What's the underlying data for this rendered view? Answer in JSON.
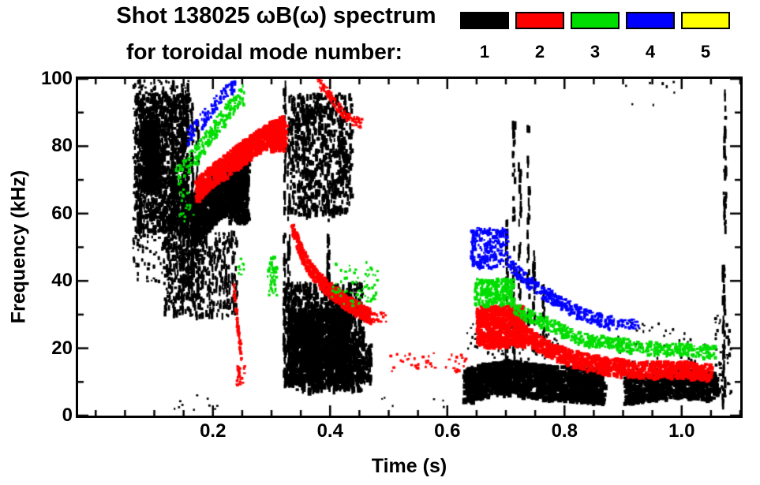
{
  "header": {
    "title_line1": "Shot 138025 ωB(ω) spectrum",
    "title_line2": "for toroidal mode number:"
  },
  "legend": {
    "items": [
      {
        "mode": 1,
        "label": "1",
        "color": "#000000"
      },
      {
        "mode": 2,
        "label": "2",
        "color": "#ff0000"
      },
      {
        "mode": 3,
        "label": "3",
        "color": "#00dd00"
      },
      {
        "mode": 4,
        "label": "4",
        "color": "#0000ff"
      },
      {
        "mode": 5,
        "label": "5",
        "color": "#ffff00"
      }
    ]
  },
  "chart_data": {
    "type": "scatter",
    "subtype": "spectrogram",
    "title": "Shot 138025 ωB(ω) spectrum for toroidal mode number: 1-5",
    "xlabel": "Time (s)",
    "ylabel": "Frequency (kHz)",
    "xlim": [
      -0.03,
      1.1
    ],
    "ylim": [
      0,
      100
    ],
    "x_ticks": {
      "major": [
        0.2,
        0.4,
        0.6,
        0.8,
        1.0
      ],
      "labels": [
        "0.2",
        "0.4",
        "0.6",
        "0.8",
        "1.0"
      ],
      "minor_step": 0.05
    },
    "y_ticks": {
      "major": [
        0,
        20,
        40,
        60,
        80,
        100
      ],
      "labels": [
        "0",
        "20",
        "40",
        "60",
        "80",
        "100"
      ],
      "minor_step": 10
    },
    "grid": false,
    "legend_position": "top-right",
    "axis_color": "#000000",
    "background": "#ffffff",
    "features": [
      {
        "mode": 1,
        "kind": "scatter",
        "t": [
          0.065,
          0.155
        ],
        "f": [
          55,
          96
        ],
        "n": 900,
        "dot": [
          2,
          5,
          3,
          8
        ]
      },
      {
        "mode": 1,
        "kind": "scatter",
        "t": [
          0.062,
          0.162
        ],
        "f": [
          40,
          100
        ],
        "n": 450,
        "dot": [
          2,
          4,
          2,
          6
        ]
      },
      {
        "mode": 1,
        "kind": "scatter",
        "t": [
          0.075,
          0.105
        ],
        "f": [
          68,
          88
        ],
        "n": 350,
        "dot": [
          3,
          6,
          4,
          9
        ]
      },
      {
        "mode": 1,
        "kind": "scatter",
        "t": [
          0.115,
          0.185
        ],
        "f": [
          30,
          68
        ],
        "n": 500,
        "dot": [
          2,
          4,
          3,
          8
        ]
      },
      {
        "mode": 1,
        "kind": "band",
        "points": [
          [
            0.16,
            58
          ],
          [
            0.19,
            63
          ],
          [
            0.22,
            68
          ],
          [
            0.255,
            74
          ]
        ],
        "width_khz": 15,
        "n": 1100,
        "dot": [
          3,
          6,
          3,
          7
        ]
      },
      {
        "mode": 1,
        "kind": "scatter",
        "t": [
          0.185,
          0.24
        ],
        "f": [
          30,
          55
        ],
        "n": 220,
        "dot": [
          2,
          3,
          3,
          9
        ]
      },
      {
        "mode": 1,
        "kind": "scatter",
        "t": [
          0.225,
          0.258
        ],
        "f": [
          58,
          77
        ],
        "n": 300,
        "dot": [
          3,
          6,
          4,
          8
        ]
      },
      {
        "mode": 1,
        "kind": "spike",
        "t": 0.147,
        "f": [
          32,
          100
        ],
        "n": 55
      },
      {
        "mode": 1,
        "kind": "spike",
        "t": 0.155,
        "f": [
          38,
          100
        ],
        "n": 50
      },
      {
        "mode": 1,
        "kind": "spike",
        "t": 0.163,
        "f": [
          30,
          95
        ],
        "n": 45
      },
      {
        "mode": 1,
        "kind": "spike",
        "t": 0.172,
        "f": [
          35,
          88
        ],
        "n": 40
      },
      {
        "mode": 1,
        "kind": "spike",
        "t": 0.1,
        "f": [
          60,
          100
        ],
        "n": 35
      },
      {
        "mode": 1,
        "kind": "spike",
        "t": 0.13,
        "f": [
          55,
          100
        ],
        "n": 35
      },
      {
        "mode": 1,
        "kind": "scatter",
        "t": [
          0.12,
          0.24
        ],
        "f": [
          2,
          8
        ],
        "n": 10,
        "dot": [
          2,
          3,
          2,
          3
        ]
      },
      {
        "mode": 1,
        "kind": "scatter",
        "t": [
          0.318,
          0.455
        ],
        "f": [
          8,
          40
        ],
        "n": 900,
        "dot": [
          2,
          5,
          3,
          9
        ]
      },
      {
        "mode": 1,
        "kind": "scatter",
        "t": [
          0.33,
          0.43
        ],
        "f": [
          10,
          32
        ],
        "n": 900,
        "dot": [
          3,
          7,
          4,
          10
        ]
      },
      {
        "mode": 1,
        "kind": "scatter",
        "t": [
          0.33,
          0.435
        ],
        "f": [
          60,
          96
        ],
        "n": 650,
        "dot": [
          2,
          5,
          3,
          9
        ]
      },
      {
        "mode": 1,
        "kind": "spike",
        "t": 0.321,
        "f": [
          12,
          100
        ],
        "n": 60
      },
      {
        "mode": 1,
        "kind": "spike",
        "t": 0.328,
        "f": [
          15,
          97
        ],
        "n": 50
      },
      {
        "mode": 1,
        "kind": "spike",
        "t": 0.395,
        "f": [
          40,
          75
        ],
        "n": 35
      },
      {
        "mode": 1,
        "kind": "scatter",
        "t": [
          0.43,
          0.468
        ],
        "f": [
          10,
          22
        ],
        "n": 170,
        "dot": [
          2,
          5,
          3,
          7
        ]
      },
      {
        "mode": 1,
        "kind": "band",
        "points": [
          [
            0.625,
            9
          ],
          [
            0.66,
            11
          ],
          [
            0.7,
            12
          ],
          [
            0.74,
            11
          ],
          [
            0.78,
            10
          ],
          [
            0.82,
            10
          ],
          [
            0.865,
            9
          ]
        ],
        "width_khz": 10,
        "n": 1300,
        "dot": [
          3,
          7,
          3,
          8
        ]
      },
      {
        "mode": 1,
        "kind": "band",
        "points": [
          [
            0.9,
            8
          ],
          [
            0.95,
            9
          ],
          [
            1.0,
            10
          ],
          [
            1.058,
            9
          ]
        ],
        "width_khz": 8,
        "n": 700,
        "dot": [
          3,
          7,
          3,
          7
        ]
      },
      {
        "mode": 1,
        "kind": "scatter",
        "t": [
          0.63,
          0.79
        ],
        "f": [
          17,
          28
        ],
        "n": 110,
        "dot": [
          2,
          3,
          2,
          4
        ]
      },
      {
        "mode": 1,
        "kind": "spike",
        "t": 0.7,
        "f": [
          15,
          62
        ],
        "n": 32
      },
      {
        "mode": 1,
        "kind": "spike",
        "t": 0.712,
        "f": [
          18,
          88
        ],
        "n": 40
      },
      {
        "mode": 1,
        "kind": "spike",
        "t": 0.722,
        "f": [
          20,
          78
        ],
        "n": 30
      },
      {
        "mode": 1,
        "kind": "spike",
        "t": 0.737,
        "f": [
          25,
          87
        ],
        "n": 36
      },
      {
        "mode": 1,
        "kind": "spike",
        "t": 0.746,
        "f": [
          18,
          50
        ],
        "n": 22
      },
      {
        "mode": 1,
        "kind": "spike",
        "t": 0.762,
        "f": [
          22,
          42
        ],
        "n": 16
      },
      {
        "mode": 1,
        "kind": "scatter",
        "t": [
          0.87,
          1.04
        ],
        "f": [
          14,
          28
        ],
        "n": 45,
        "dot": [
          2,
          3,
          2,
          4
        ]
      },
      {
        "mode": 1,
        "kind": "spike",
        "t": 1.07,
        "f": [
          3,
          45
        ],
        "n": 40
      },
      {
        "mode": 1,
        "kind": "spike",
        "t": 1.072,
        "f": [
          55,
          97
        ],
        "n": 35
      },
      {
        "mode": 1,
        "kind": "scatter",
        "t": [
          1.055,
          1.082
        ],
        "f": [
          5,
          30
        ],
        "n": 60,
        "dot": [
          2,
          4,
          2,
          5
        ]
      },
      {
        "mode": 1,
        "kind": "scatter",
        "t": [
          0.9,
          1.0
        ],
        "f": [
          92,
          100
        ],
        "n": 8,
        "dot": [
          2,
          3,
          2,
          4
        ]
      },
      {
        "mode": 1,
        "kind": "scatter",
        "t": [
          0.48,
          0.6
        ],
        "f": [
          2,
          6
        ],
        "n": 6,
        "dot": [
          2,
          3,
          2,
          3
        ]
      },
      {
        "mode": 2,
        "kind": "band",
        "points": [
          [
            0.168,
            67
          ],
          [
            0.2,
            72
          ],
          [
            0.23,
            76
          ],
          [
            0.26,
            80
          ],
          [
            0.295,
            84
          ],
          [
            0.318,
            86
          ]
        ],
        "width_khz": 7,
        "n": 850,
        "dot": [
          3,
          6,
          3,
          6
        ]
      },
      {
        "mode": 2,
        "kind": "scatter",
        "t": [
          0.295,
          0.322
        ],
        "f": [
          79,
          88
        ],
        "n": 180,
        "dot": [
          3,
          6,
          3,
          6
        ]
      },
      {
        "mode": 2,
        "kind": "band",
        "points": [
          [
            0.234,
            38
          ],
          [
            0.24,
            27
          ],
          [
            0.247,
            18
          ]
        ],
        "width_khz": 4,
        "n": 70,
        "dot": [
          2,
          4,
          2,
          5
        ]
      },
      {
        "mode": 2,
        "kind": "scatter",
        "t": [
          0.238,
          0.252
        ],
        "f": [
          9,
          15
        ],
        "n": 25,
        "dot": [
          2,
          4,
          2,
          4
        ]
      },
      {
        "mode": 2,
        "kind": "band",
        "points": [
          [
            0.375,
            100
          ],
          [
            0.395,
            96
          ],
          [
            0.415,
            91
          ],
          [
            0.435,
            88
          ],
          [
            0.452,
            87
          ]
        ],
        "width_khz": 3,
        "n": 130,
        "dot": [
          2,
          4,
          2,
          4
        ]
      },
      {
        "mode": 2,
        "kind": "band",
        "points": [
          [
            0.332,
            57
          ],
          [
            0.35,
            48
          ],
          [
            0.372,
            42
          ],
          [
            0.395,
            38
          ],
          [
            0.425,
            34
          ],
          [
            0.455,
            31
          ],
          [
            0.468,
            30
          ]
        ],
        "width_khz": 4.5,
        "n": 600,
        "dot": [
          3,
          5,
          3,
          5
        ]
      },
      {
        "mode": 2,
        "kind": "scatter",
        "t": [
          0.47,
          0.495
        ],
        "f": [
          28,
          31
        ],
        "n": 18,
        "dot": [
          2,
          4,
          2,
          4
        ]
      },
      {
        "mode": 2,
        "kind": "scatter",
        "t": [
          0.5,
          0.635
        ],
        "f": [
          13,
          19
        ],
        "n": 45,
        "dot": [
          2,
          4,
          2,
          4
        ]
      },
      {
        "mode": 2,
        "kind": "scatter",
        "t": [
          0.648,
          0.728
        ],
        "f": [
          21,
          33
        ],
        "n": 550,
        "dot": [
          3,
          6,
          3,
          7
        ]
      },
      {
        "mode": 2,
        "kind": "band",
        "points": [
          [
            0.728,
            25
          ],
          [
            0.76,
            21
          ],
          [
            0.8,
            18
          ],
          [
            0.84,
            16
          ],
          [
            0.88,
            15
          ],
          [
            0.92,
            14
          ],
          [
            0.97,
            14
          ],
          [
            1.01,
            14
          ],
          [
            1.048,
            13
          ]
        ],
        "width_khz": 5,
        "n": 850,
        "dot": [
          3,
          6,
          3,
          6
        ]
      },
      {
        "mode": 3,
        "kind": "band",
        "points": [
          [
            0.135,
            71
          ],
          [
            0.17,
            78
          ],
          [
            0.2,
            85
          ],
          [
            0.23,
            92
          ],
          [
            0.252,
            96
          ]
        ],
        "width_khz": 6,
        "n": 220,
        "dot": [
          2,
          4,
          2,
          5
        ]
      },
      {
        "mode": 3,
        "kind": "scatter",
        "t": [
          0.14,
          0.165
        ],
        "f": [
          58,
          68
        ],
        "n": 18,
        "dot": [
          2,
          4,
          2,
          4
        ]
      },
      {
        "mode": 3,
        "kind": "scatter",
        "t": [
          0.24,
          0.255
        ],
        "f": [
          42,
          48
        ],
        "n": 10,
        "dot": [
          2,
          4,
          2,
          4
        ]
      },
      {
        "mode": 3,
        "kind": "scatter",
        "t": [
          0.292,
          0.308
        ],
        "f": [
          36,
          48
        ],
        "n": 50,
        "dot": [
          2,
          4,
          2,
          5
        ]
      },
      {
        "mode": 3,
        "kind": "scatter",
        "t": [
          0.4,
          0.48
        ],
        "f": [
          33,
          46
        ],
        "n": 70,
        "dot": [
          2,
          4,
          2,
          4
        ]
      },
      {
        "mode": 3,
        "kind": "scatter",
        "t": [
          0.645,
          0.712
        ],
        "f": [
          33,
          41
        ],
        "n": 230,
        "dot": [
          2,
          5,
          2,
          6
        ]
      },
      {
        "mode": 3,
        "kind": "band",
        "points": [
          [
            0.712,
            32
          ],
          [
            0.75,
            29
          ],
          [
            0.79,
            26
          ],
          [
            0.83,
            23
          ],
          [
            0.87,
            22
          ],
          [
            0.91,
            21
          ],
          [
            0.96,
            20
          ],
          [
            1.01,
            20
          ],
          [
            1.055,
            19
          ]
        ],
        "width_khz": 4,
        "n": 520,
        "dot": [
          2,
          5,
          2,
          5
        ]
      },
      {
        "mode": 4,
        "kind": "band",
        "points": [
          [
            0.155,
            83
          ],
          [
            0.18,
            88
          ],
          [
            0.21,
            94
          ],
          [
            0.237,
            100
          ]
        ],
        "width_khz": 5,
        "n": 110,
        "dot": [
          2,
          4,
          2,
          5
        ]
      },
      {
        "mode": 4,
        "kind": "scatter",
        "t": [
          0.638,
          0.7
        ],
        "f": [
          44,
          56
        ],
        "n": 190,
        "dot": [
          2,
          5,
          2,
          6
        ]
      },
      {
        "mode": 4,
        "kind": "band",
        "points": [
          [
            0.7,
            46
          ],
          [
            0.73,
            41
          ],
          [
            0.76,
            37
          ],
          [
            0.79,
            34
          ],
          [
            0.82,
            31
          ],
          [
            0.85,
            29
          ],
          [
            0.878,
            28
          ]
        ],
        "width_khz": 4,
        "n": 320,
        "dot": [
          2,
          5,
          2,
          5
        ]
      },
      {
        "mode": 4,
        "kind": "scatter",
        "t": [
          0.878,
          0.925
        ],
        "f": [
          26,
          29
        ],
        "n": 45,
        "dot": [
          2,
          4,
          2,
          4
        ]
      }
    ]
  }
}
